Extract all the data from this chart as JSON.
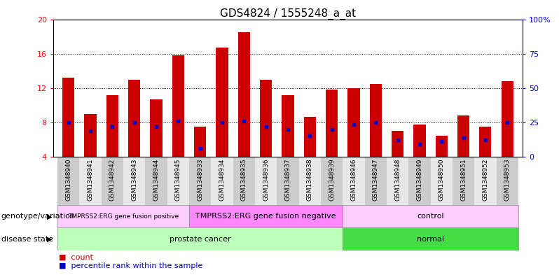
{
  "title": "GDS4824 / 1555248_a_at",
  "samples": [
    "GSM1348940",
    "GSM1348941",
    "GSM1348942",
    "GSM1348943",
    "GSM1348944",
    "GSM1348945",
    "GSM1348933",
    "GSM1348934",
    "GSM1348935",
    "GSM1348936",
    "GSM1348937",
    "GSM1348938",
    "GSM1348939",
    "GSM1348946",
    "GSM1348947",
    "GSM1348948",
    "GSM1348949",
    "GSM1348950",
    "GSM1348951",
    "GSM1348952",
    "GSM1348953"
  ],
  "bar_heights": [
    13.2,
    9.0,
    11.2,
    13.0,
    10.7,
    15.8,
    7.5,
    16.7,
    18.5,
    13.0,
    11.2,
    8.7,
    11.8,
    12.0,
    12.5,
    7.0,
    7.8,
    6.5,
    8.8,
    7.5,
    12.8
  ],
  "blue_markers": [
    8.0,
    7.0,
    7.5,
    8.0,
    7.5,
    8.2,
    5.0,
    8.0,
    8.2,
    7.5,
    7.2,
    6.5,
    7.2,
    7.8,
    8.0,
    6.0,
    5.5,
    5.8,
    6.2,
    6.0,
    8.0
  ],
  "ylim": [
    4,
    20
  ],
  "yticks": [
    4,
    8,
    12,
    16,
    20
  ],
  "y2ticks": [
    0,
    25,
    50,
    75,
    100
  ],
  "y2labels": [
    "0",
    "25",
    "50",
    "75",
    "100%"
  ],
  "bar_color": "#cc0000",
  "blue_color": "#0000cc",
  "bg_color": "#ffffff",
  "disease_state_groups": [
    {
      "label": "prostate cancer",
      "start": 0,
      "end": 13,
      "color": "#bbffbb"
    },
    {
      "label": "normal",
      "start": 13,
      "end": 21,
      "color": "#44dd44"
    }
  ],
  "genotype_groups": [
    {
      "label": "TMPRSS2:ERG gene fusion positive",
      "start": 0,
      "end": 6,
      "color": "#ffccff"
    },
    {
      "label": "TMPRSS2:ERG gene fusion negative",
      "start": 6,
      "end": 13,
      "color": "#ff88ff"
    },
    {
      "label": "control",
      "start": 13,
      "end": 21,
      "color": "#ffccff"
    }
  ],
  "disease_label": "disease state",
  "genotype_label": "genotype/variation",
  "legend_count": "count",
  "legend_percentile": "percentile rank within the sample",
  "title_fontsize": 11,
  "tick_fontsize": 6.5,
  "bar_width": 0.55,
  "stripe_colors": [
    "#cccccc",
    "#e8e8e8"
  ]
}
